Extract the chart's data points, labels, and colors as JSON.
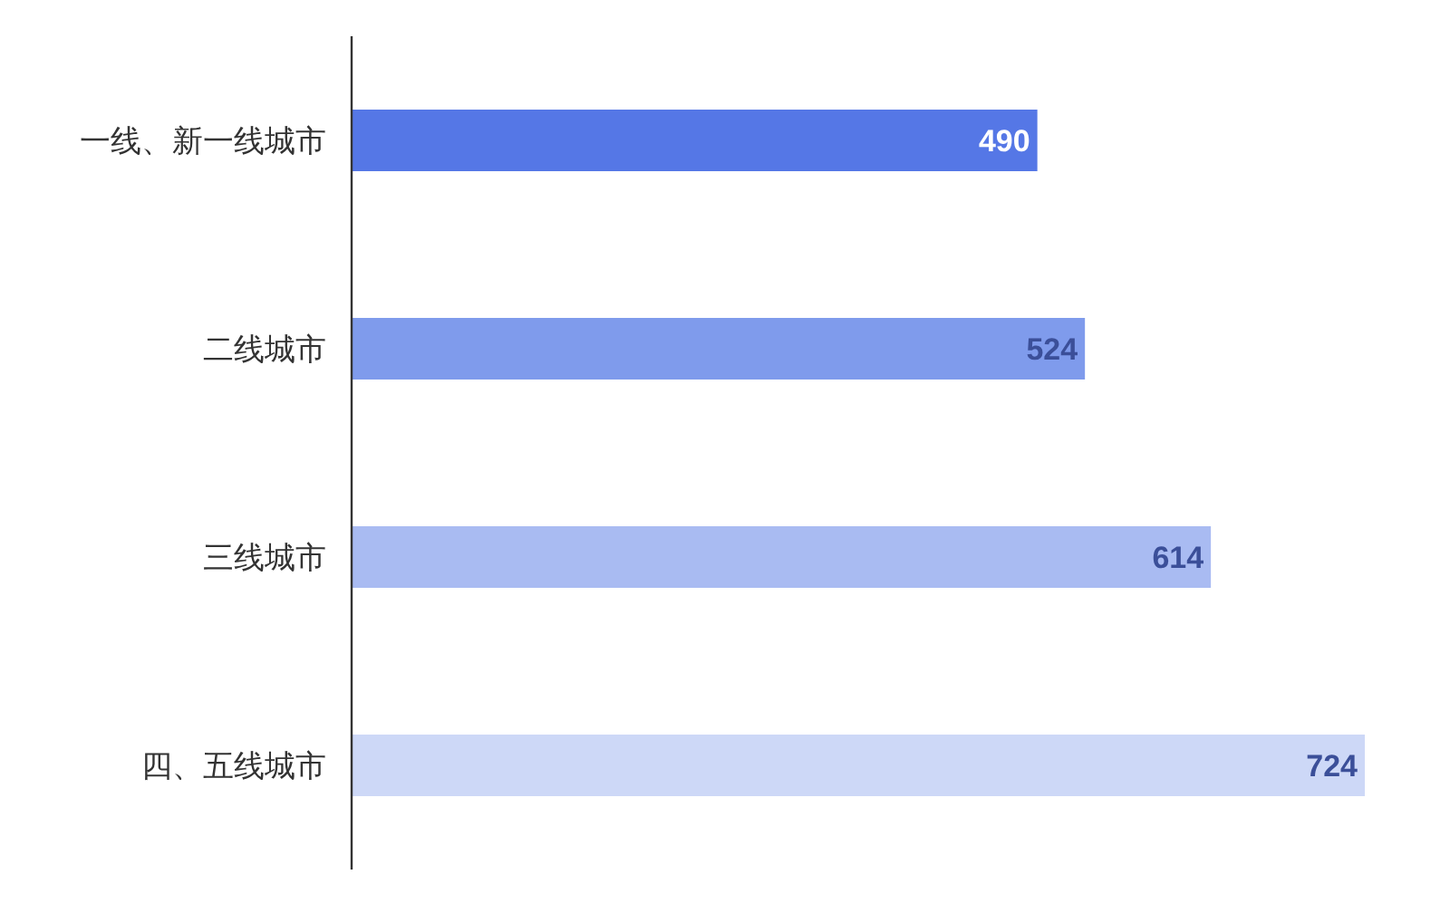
{
  "chart_data": {
    "type": "bar",
    "orientation": "horizontal",
    "categories": [
      "一线、新一线城市",
      "二线城市",
      "三线城市",
      "四、五线城市"
    ],
    "values": [
      490,
      524,
      614,
      724
    ],
    "colors": [
      "#5577e6",
      "#7f9bec",
      "#a9bbf2",
      "#cdd8f7"
    ],
    "data_labels": true
  }
}
